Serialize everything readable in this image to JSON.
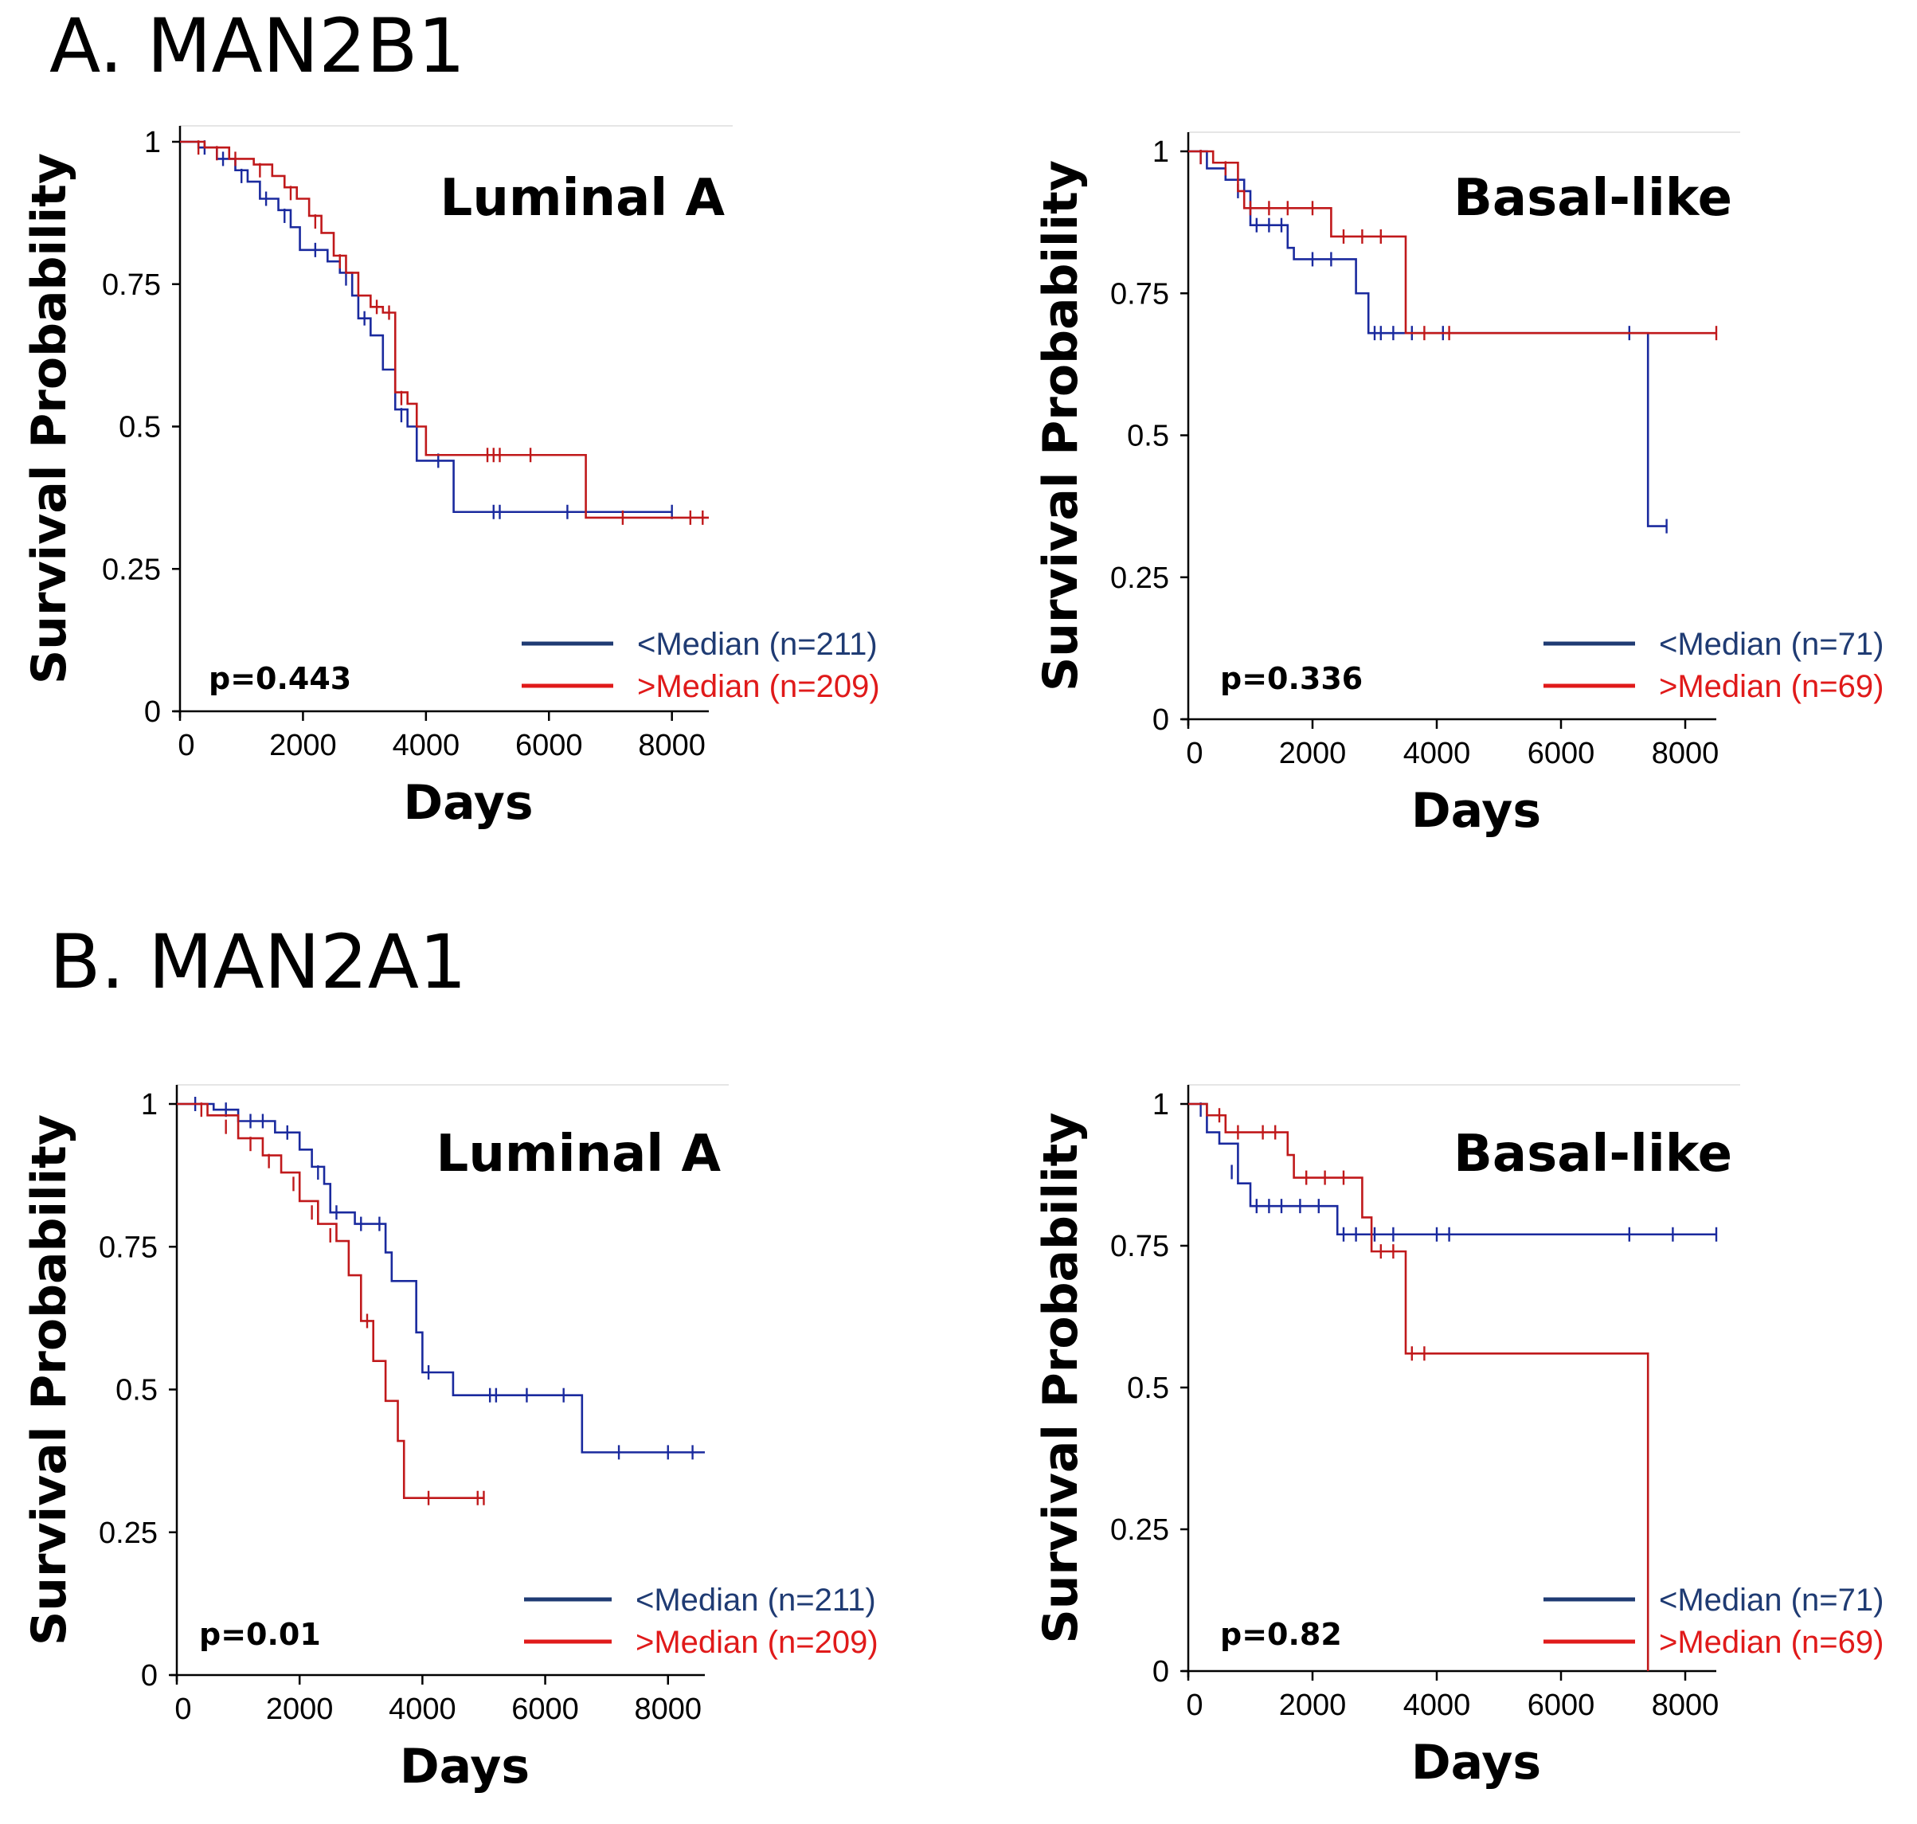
{
  "sections": [
    {
      "label": "A. MAN2B1"
    },
    {
      "label": "B. MAN2A1"
    }
  ],
  "colors": {
    "low": "#1a2a9e",
    "high": "#c0191b",
    "low_legend": "#1f3b73",
    "high_legend": "#e01a1a"
  },
  "chart_data": [
    {
      "type": "line",
      "subtype": "kaplan-meier",
      "title": "Luminal A",
      "xlabel": "Days",
      "ylabel": "Survival Probability",
      "xlim": [
        0,
        8600
      ],
      "ylim": [
        0,
        1
      ],
      "xticks": [
        "0",
        "2000",
        "4000",
        "6000",
        "8000"
      ],
      "yticks": [
        "0",
        "0.25",
        "0.5",
        "0.75",
        "1"
      ],
      "pvalue": "p=0.443",
      "series": [
        {
          "name": "<Median (n=211)",
          "color_key": "low",
          "x": [
            0,
            300,
            600,
            900,
            1100,
            1300,
            1600,
            1800,
            1950,
            2100,
            2400,
            2600,
            2800,
            2900,
            3100,
            3300,
            3500,
            3700,
            3850,
            4000,
            4450,
            5100,
            8000
          ],
          "y": [
            1,
            0.99,
            0.97,
            0.95,
            0.93,
            0.9,
            0.88,
            0.85,
            0.81,
            0.81,
            0.79,
            0.77,
            0.73,
            0.69,
            0.66,
            0.6,
            0.53,
            0.5,
            0.44,
            0.44,
            0.35,
            0.35,
            0.35
          ],
          "censored": [
            [
              400,
              0.99
            ],
            [
              700,
              0.97
            ],
            [
              1000,
              0.94
            ],
            [
              1400,
              0.9
            ],
            [
              1700,
              0.87
            ],
            [
              2200,
              0.81
            ],
            [
              2700,
              0.76
            ],
            [
              3000,
              0.69
            ],
            [
              3600,
              0.52
            ],
            [
              4200,
              0.44
            ],
            [
              5100,
              0.35
            ],
            [
              5200,
              0.35
            ],
            [
              6300,
              0.35
            ],
            [
              8000,
              0.35
            ]
          ]
        },
        {
          "name": ">Median (n=209)",
          "color_key": "high",
          "x": [
            0,
            400,
            800,
            1200,
            1500,
            1700,
            1900,
            2100,
            2300,
            2500,
            2700,
            2900,
            3100,
            3300,
            3500,
            3700,
            3850,
            4000,
            6600,
            8600
          ],
          "y": [
            1,
            0.99,
            0.97,
            0.96,
            0.94,
            0.92,
            0.9,
            0.87,
            0.84,
            0.8,
            0.77,
            0.73,
            0.71,
            0.7,
            0.56,
            0.54,
            0.5,
            0.45,
            0.34,
            0.34
          ],
          "censored": [
            [
              300,
              0.99
            ],
            [
              600,
              0.98
            ],
            [
              900,
              0.97
            ],
            [
              1300,
              0.95
            ],
            [
              1800,
              0.91
            ],
            [
              2200,
              0.86
            ],
            [
              2600,
              0.79
            ],
            [
              3200,
              0.71
            ],
            [
              3400,
              0.7
            ],
            [
              3600,
              0.55
            ],
            [
              5000,
              0.45
            ],
            [
              5100,
              0.45
            ],
            [
              5200,
              0.45
            ],
            [
              5700,
              0.45
            ],
            [
              7200,
              0.34
            ],
            [
              8300,
              0.34
            ],
            [
              8500,
              0.34
            ]
          ]
        }
      ]
    },
    {
      "type": "line",
      "subtype": "kaplan-meier",
      "title": "Basal-like",
      "xlabel": "Days",
      "ylabel": "Survival Probability",
      "xlim": [
        0,
        8500
      ],
      "ylim": [
        0,
        1
      ],
      "xticks": [
        "0",
        "2000",
        "4000",
        "6000",
        "8000"
      ],
      "yticks": [
        "0",
        "0.25",
        "0.5",
        "0.75",
        "1"
      ],
      "pvalue": "p=0.336",
      "series": [
        {
          "name": "<Median (n=71)",
          "color_key": "low",
          "x": [
            0,
            300,
            600,
            900,
            1000,
            1600,
            1700,
            2700,
            2900,
            3000,
            7400,
            7700
          ],
          "y": [
            1,
            0.97,
            0.95,
            0.93,
            0.87,
            0.83,
            0.81,
            0.75,
            0.68,
            0.68,
            0.34,
            0.34
          ],
          "censored": [
            [
              200,
              0.99
            ],
            [
              800,
              0.93
            ],
            [
              1100,
              0.87
            ],
            [
              1300,
              0.87
            ],
            [
              1500,
              0.87
            ],
            [
              2000,
              0.81
            ],
            [
              2300,
              0.81
            ],
            [
              3000,
              0.68
            ],
            [
              3100,
              0.68
            ],
            [
              3300,
              0.68
            ],
            [
              3600,
              0.68
            ],
            [
              4100,
              0.68
            ],
            [
              7100,
              0.68
            ],
            [
              7700,
              0.34
            ]
          ]
        },
        {
          "name": ">Median (n=69)",
          "color_key": "high",
          "x": [
            0,
            400,
            800,
            900,
            2300,
            3400,
            3500,
            8500
          ],
          "y": [
            1,
            0.98,
            0.93,
            0.9,
            0.85,
            0.85,
            0.68,
            0.68
          ],
          "censored": [
            [
              200,
              0.99
            ],
            [
              600,
              0.97
            ],
            [
              1000,
              0.9
            ],
            [
              1300,
              0.9
            ],
            [
              1600,
              0.9
            ],
            [
              2000,
              0.9
            ],
            [
              2500,
              0.85
            ],
            [
              2800,
              0.85
            ],
            [
              3100,
              0.85
            ],
            [
              3800,
              0.68
            ],
            [
              4200,
              0.68
            ],
            [
              8500,
              0.68
            ]
          ]
        }
      ]
    },
    {
      "type": "line",
      "subtype": "kaplan-meier",
      "title": "Luminal A",
      "xlabel": "Days",
      "ylabel": "Survival Probability",
      "xlim": [
        0,
        8600
      ],
      "ylim": [
        0,
        1
      ],
      "xticks": [
        "0",
        "2000",
        "4000",
        "6000",
        "8000"
      ],
      "yticks": [
        "0",
        "0.25",
        "0.5",
        "0.75",
        "1"
      ],
      "pvalue": "p=0.01",
      "series": [
        {
          "name": "<Median (n=211)",
          "color_key": "low",
          "x": [
            0,
            600,
            1000,
            1600,
            2000,
            2200,
            2400,
            2500,
            2900,
            3400,
            3500,
            3900,
            4000,
            4500,
            6600,
            8600
          ],
          "y": [
            1,
            0.99,
            0.97,
            0.95,
            0.92,
            0.89,
            0.86,
            0.81,
            0.79,
            0.74,
            0.69,
            0.6,
            0.53,
            0.49,
            0.39,
            0.39
          ],
          "censored": [
            [
              300,
              1
            ],
            [
              800,
              0.99
            ],
            [
              1200,
              0.97
            ],
            [
              1400,
              0.97
            ],
            [
              1800,
              0.95
            ],
            [
              2300,
              0.88
            ],
            [
              2600,
              0.81
            ],
            [
              3000,
              0.79
            ],
            [
              3300,
              0.79
            ],
            [
              4100,
              0.53
            ],
            [
              5100,
              0.49
            ],
            [
              5200,
              0.49
            ],
            [
              5700,
              0.49
            ],
            [
              6300,
              0.49
            ],
            [
              7200,
              0.39
            ],
            [
              8000,
              0.39
            ],
            [
              8400,
              0.39
            ]
          ]
        },
        {
          "name": ">Median (n=209)",
          "color_key": "high",
          "x": [
            0,
            500,
            1000,
            1400,
            1700,
            2000,
            2300,
            2600,
            2800,
            3000,
            3200,
            3400,
            3600,
            3700,
            5000
          ],
          "y": [
            1,
            0.98,
            0.94,
            0.91,
            0.88,
            0.83,
            0.79,
            0.76,
            0.7,
            0.62,
            0.55,
            0.48,
            0.41,
            0.31,
            0.31
          ],
          "censored": [
            [
              400,
              0.99
            ],
            [
              800,
              0.96
            ],
            [
              1200,
              0.93
            ],
            [
              1500,
              0.9
            ],
            [
              1900,
              0.86
            ],
            [
              2200,
              0.81
            ],
            [
              2500,
              0.77
            ],
            [
              3100,
              0.62
            ],
            [
              4100,
              0.31
            ],
            [
              4900,
              0.31
            ],
            [
              5000,
              0.31
            ]
          ]
        }
      ]
    },
    {
      "type": "line",
      "subtype": "kaplan-meier",
      "title": "Basal-like",
      "xlabel": "Days",
      "ylabel": "Survival Probability",
      "xlim": [
        0,
        8500
      ],
      "ylim": [
        0,
        1
      ],
      "xticks": [
        "0",
        "2000",
        "4000",
        "6000",
        "8000"
      ],
      "yticks": [
        "0",
        "0.25",
        "0.5",
        "0.75",
        "1"
      ],
      "pvalue": "p=0.82",
      "series": [
        {
          "name": "<Median (n=71)",
          "color_key": "low",
          "x": [
            0,
            300,
            500,
            800,
            1000,
            2300,
            2400,
            8500
          ],
          "y": [
            1,
            0.95,
            0.93,
            0.86,
            0.82,
            0.82,
            0.77,
            0.77
          ],
          "censored": [
            [
              200,
              0.99
            ],
            [
              700,
              0.88
            ],
            [
              1100,
              0.82
            ],
            [
              1300,
              0.82
            ],
            [
              1500,
              0.82
            ],
            [
              1800,
              0.82
            ],
            [
              2100,
              0.82
            ],
            [
              2500,
              0.77
            ],
            [
              2700,
              0.77
            ],
            [
              3000,
              0.77
            ],
            [
              3300,
              0.77
            ],
            [
              4000,
              0.77
            ],
            [
              4200,
              0.77
            ],
            [
              7100,
              0.77
            ],
            [
              7800,
              0.77
            ],
            [
              8500,
              0.77
            ]
          ]
        },
        {
          "name": ">Median (n=69)",
          "color_key": "high",
          "x": [
            0,
            300,
            600,
            1600,
            1700,
            2800,
            2950,
            3500,
            7400,
            7400
          ],
          "y": [
            1,
            0.98,
            0.95,
            0.91,
            0.87,
            0.8,
            0.74,
            0.56,
            0.56,
            0
          ],
          "censored": [
            [
              500,
              0.98
            ],
            [
              800,
              0.95
            ],
            [
              1200,
              0.95
            ],
            [
              1400,
              0.95
            ],
            [
              1900,
              0.87
            ],
            [
              2200,
              0.87
            ],
            [
              2500,
              0.87
            ],
            [
              3100,
              0.74
            ],
            [
              3300,
              0.74
            ],
            [
              3600,
              0.56
            ],
            [
              3800,
              0.56
            ]
          ]
        }
      ]
    }
  ]
}
